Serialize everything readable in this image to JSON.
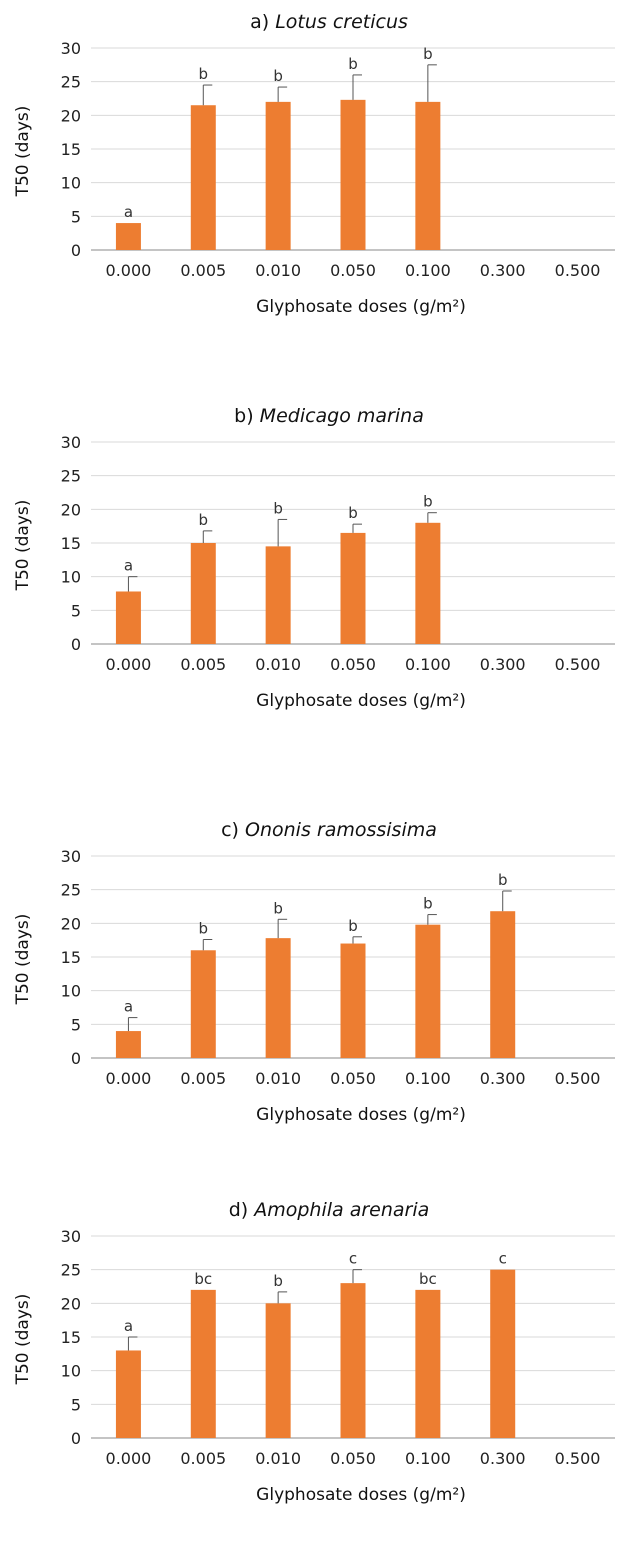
{
  "colors": {
    "bar": "#ed7d31",
    "grid": "#d9d9d9",
    "text": "#111111"
  },
  "chart_data": [
    {
      "type": "bar",
      "title_prefix": "a) ",
      "title_species": "Lotus creticus",
      "xlabel": "Glyphosate doses (g/m²)",
      "ylabel": "T50 (days)",
      "ylim": [
        0,
        30
      ],
      "yticks": [
        0,
        5,
        10,
        15,
        20,
        25,
        30
      ],
      "grid": true,
      "categories": [
        "0.000",
        "0.005",
        "0.010",
        "0.050",
        "0.100",
        "0.300",
        "0.500"
      ],
      "values": [
        4.0,
        21.5,
        22.0,
        22.3,
        22.0,
        null,
        null
      ],
      "error_upper": [
        4.0,
        24.5,
        24.2,
        26.0,
        27.5,
        null,
        null
      ],
      "labels": [
        "a",
        "b",
        "b",
        "b",
        "b",
        "",
        ""
      ]
    },
    {
      "type": "bar",
      "title_prefix": "b) ",
      "title_species": "Medicago marina",
      "xlabel": "Glyphosate doses (g/m²)",
      "ylabel": "T50 (days)",
      "ylim": [
        0,
        30
      ],
      "yticks": [
        0,
        5,
        10,
        15,
        20,
        25,
        30
      ],
      "grid": true,
      "categories": [
        "0.000",
        "0.005",
        "0.010",
        "0.050",
        "0.100",
        "0.300",
        "0.500"
      ],
      "values": [
        7.8,
        15.0,
        14.5,
        16.5,
        18.0,
        null,
        null
      ],
      "error_upper": [
        10.0,
        16.8,
        18.5,
        17.8,
        19.5,
        null,
        null
      ],
      "labels": [
        "a",
        "b",
        "b",
        "b",
        "b",
        "",
        ""
      ]
    },
    {
      "type": "bar",
      "title_prefix": "c) ",
      "title_species": "Ononis ramossisima",
      "xlabel": "Glyphosate doses (g/m²)",
      "ylabel": "T50 (days)",
      "ylim": [
        0,
        30
      ],
      "yticks": [
        0,
        5,
        10,
        15,
        20,
        25,
        30
      ],
      "grid": true,
      "categories": [
        "0.000",
        "0.005",
        "0.010",
        "0.050",
        "0.100",
        "0.300",
        "0.500"
      ],
      "values": [
        4.0,
        16.0,
        17.8,
        17.0,
        19.8,
        21.8,
        null
      ],
      "error_upper": [
        6.0,
        17.6,
        20.6,
        18.0,
        21.3,
        24.8,
        null
      ],
      "labels": [
        "a",
        "b",
        "b",
        "b",
        "b",
        "b",
        ""
      ]
    },
    {
      "type": "bar",
      "title_prefix": "d) ",
      "title_species": "Amophila arenaria",
      "xlabel": "Glyphosate doses (g/m²)",
      "ylabel": "T50 (days)",
      "ylim": [
        0,
        30
      ],
      "yticks": [
        0,
        5,
        10,
        15,
        20,
        25,
        30
      ],
      "grid": true,
      "categories": [
        "0.000",
        "0.005",
        "0.010",
        "0.050",
        "0.100",
        "0.300",
        "0.500"
      ],
      "values": [
        13.0,
        22.0,
        20.0,
        23.0,
        22.0,
        25.0,
        null
      ],
      "error_upper": [
        15.0,
        22.0,
        21.7,
        25.0,
        22.0,
        25.0,
        null
      ],
      "labels": [
        "a",
        "bc",
        "b",
        "c",
        "bc",
        "c",
        ""
      ]
    }
  ]
}
